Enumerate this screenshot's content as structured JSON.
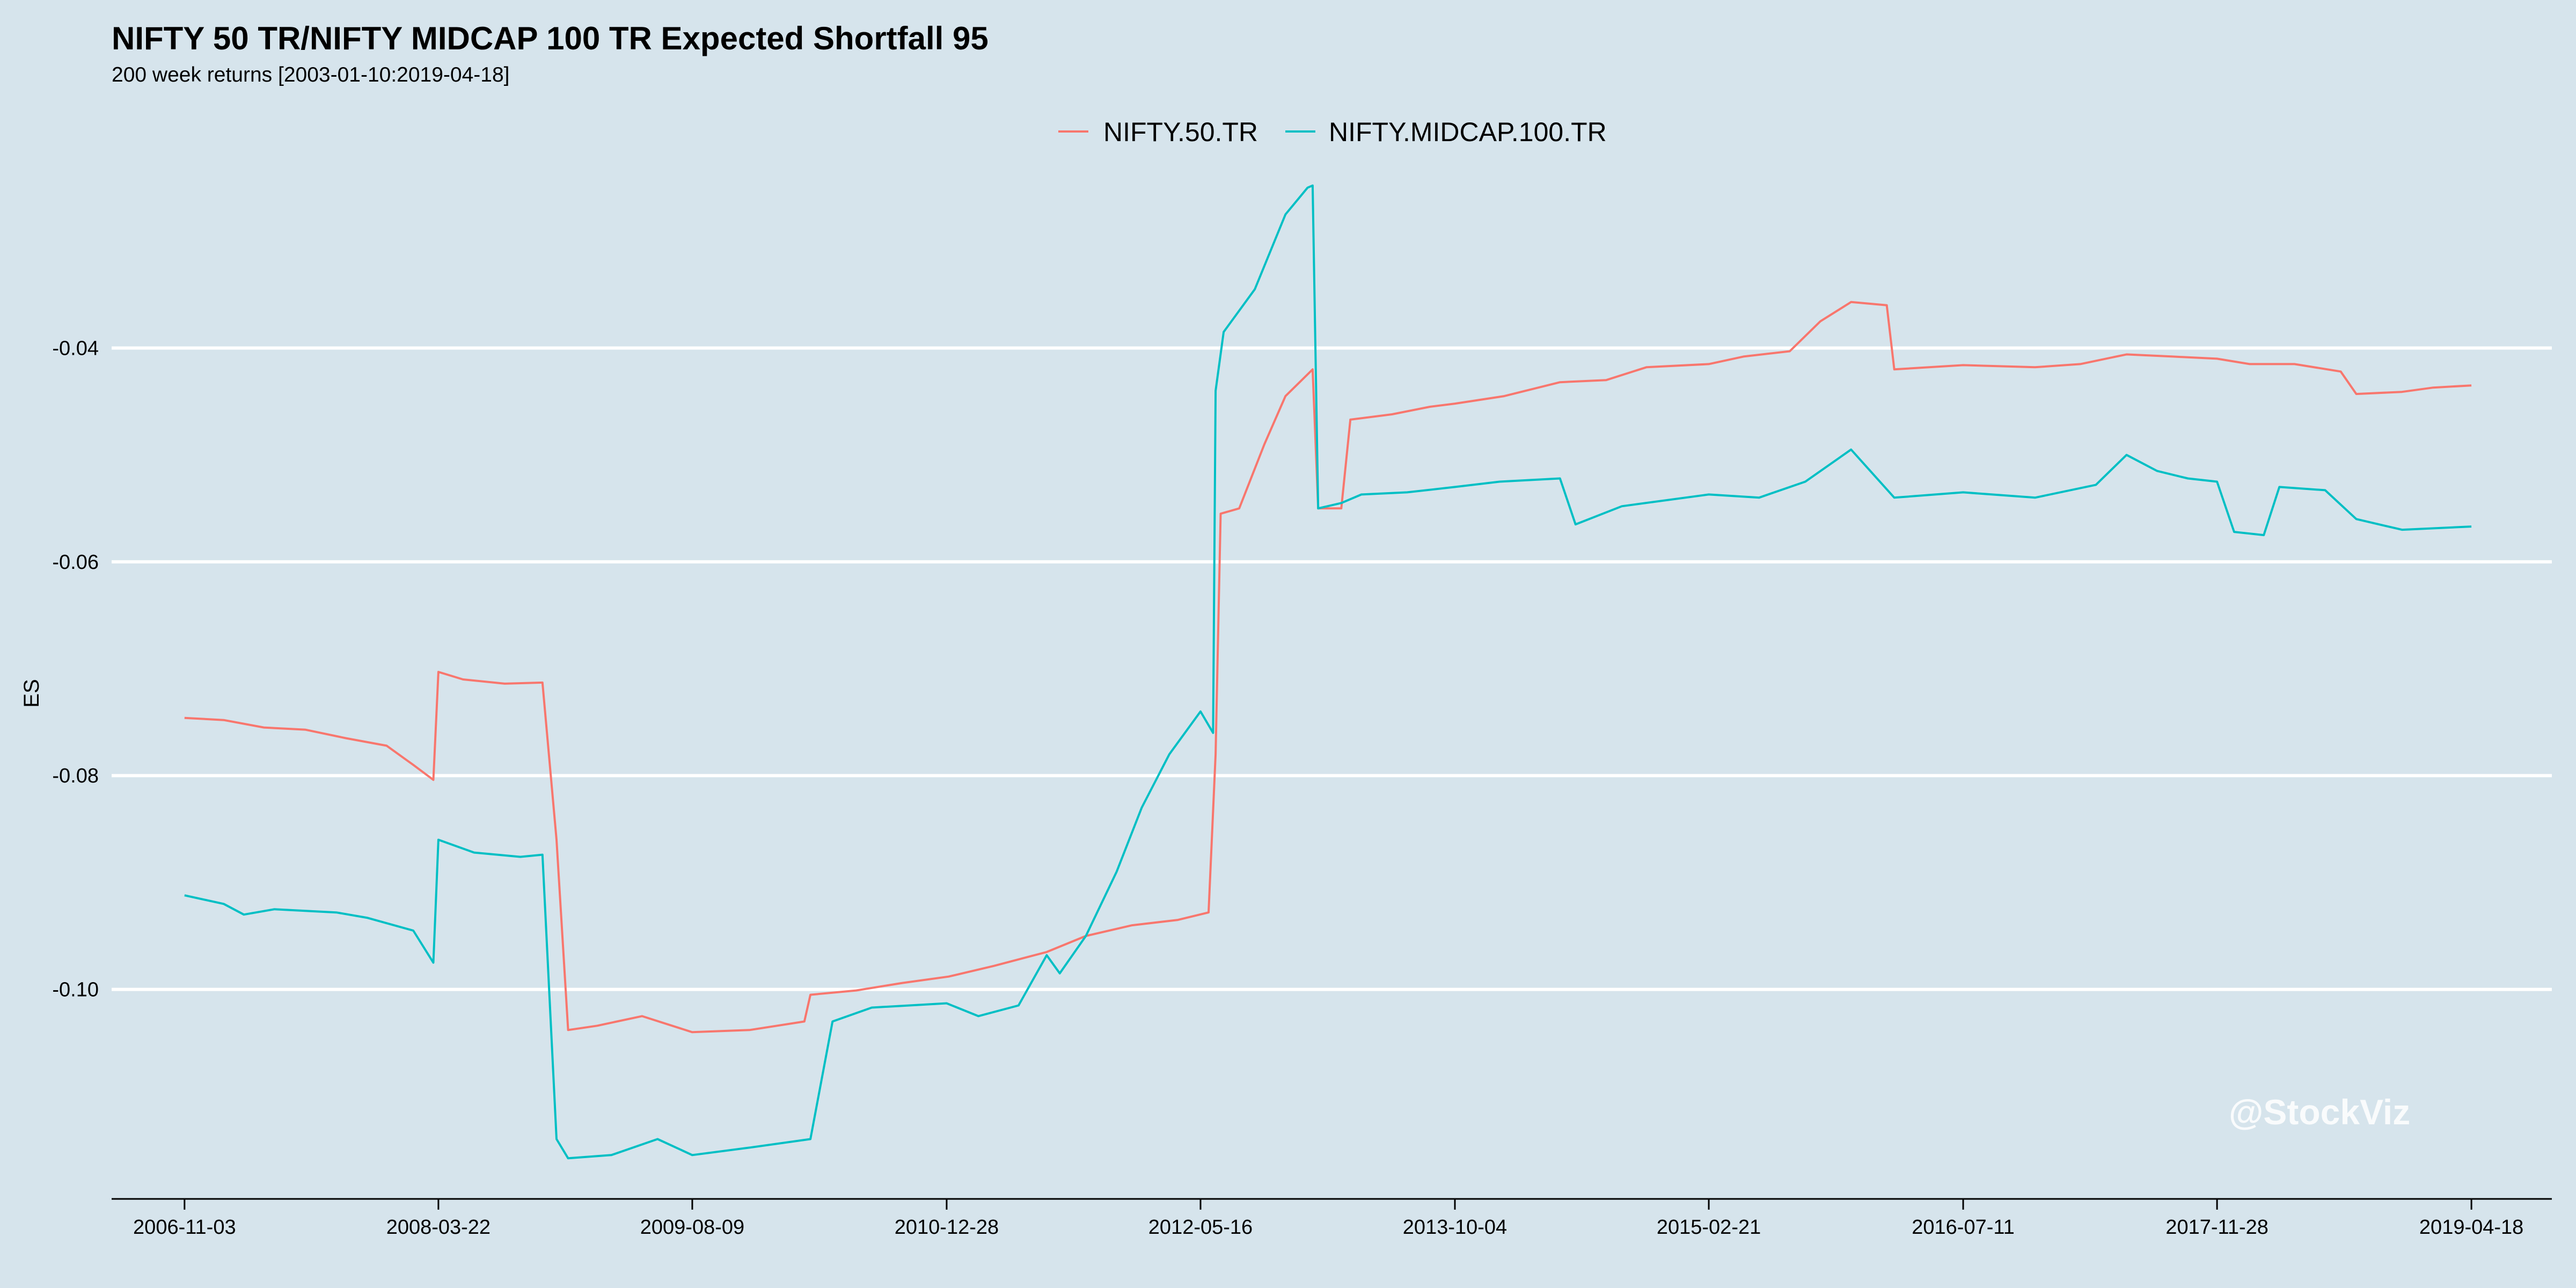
{
  "chart_data": {
    "type": "line",
    "title": "NIFTY 50 TR/NIFTY MIDCAP 100 TR Expected Shortfall 95",
    "subtitle": "200 week returns [2003-01-10:2019-04-18]",
    "xlabel": "",
    "ylabel": "ES",
    "watermark": "@StockViz",
    "x_ticks": [
      "2006-11-03",
      "2008-03-22",
      "2009-08-09",
      "2010-12-28",
      "2012-05-16",
      "2013-10-04",
      "2015-02-21",
      "2016-07-11",
      "2017-11-28",
      "2019-04-18"
    ],
    "y_ticks": [
      -0.1,
      -0.08,
      -0.06,
      -0.04
    ],
    "y_tick_labels": [
      "-0.10",
      "-0.08",
      "-0.06",
      "-0.04"
    ],
    "ylim": [
      -0.1196,
      -0.0215
    ],
    "xlim": [
      "2006-06-11",
      "2019-09-25"
    ],
    "grid": "horizontal-major",
    "legend_position": "top",
    "colors": {
      "nifty50": "#f8766d",
      "midcap": "#00bfc4",
      "background": "#d6e4ec",
      "grid": "#ffffff"
    },
    "series": [
      {
        "name": "NIFTY.50.TR",
        "color": "#f8766d",
        "points": [
          [
            "2006-11-03",
            -0.0746
          ],
          [
            "2007-01-20",
            -0.0748
          ],
          [
            "2007-04-10",
            -0.0755
          ],
          [
            "2007-07-01",
            -0.0757
          ],
          [
            "2007-09-20",
            -0.0765
          ],
          [
            "2007-12-10",
            -0.0772
          ],
          [
            "2008-02-01",
            -0.079
          ],
          [
            "2008-03-12",
            -0.0804
          ],
          [
            "2008-03-22",
            -0.0703
          ],
          [
            "2008-05-10",
            -0.071
          ],
          [
            "2008-08-01",
            -0.0714
          ],
          [
            "2008-10-15",
            -0.0713
          ],
          [
            "2008-11-12",
            -0.086
          ],
          [
            "2008-12-05",
            -0.1038
          ],
          [
            "2009-02-01",
            -0.1034
          ],
          [
            "2009-05-01",
            -0.1025
          ],
          [
            "2009-08-09",
            -0.104
          ],
          [
            "2009-12-01",
            -0.1038
          ],
          [
            "2010-03-20",
            -0.103
          ],
          [
            "2010-04-01",
            -0.1005
          ],
          [
            "2010-07-01",
            -0.1001
          ],
          [
            "2010-10-01",
            -0.0994
          ],
          [
            "2011-01-01",
            -0.0988
          ],
          [
            "2011-04-01",
            -0.0978
          ],
          [
            "2011-07-15",
            -0.0965
          ],
          [
            "2011-10-01",
            -0.095
          ],
          [
            "2012-01-01",
            -0.094
          ],
          [
            "2012-04-01",
            -0.0935
          ],
          [
            "2012-06-01",
            -0.0928
          ],
          [
            "2012-06-15",
            -0.078
          ],
          [
            "2012-06-25",
            -0.0555
          ],
          [
            "2012-08-01",
            -0.055
          ],
          [
            "2012-09-20",
            -0.049
          ],
          [
            "2012-11-01",
            -0.0445
          ],
          [
            "2012-12-25",
            -0.042
          ],
          [
            "2013-01-05",
            -0.055
          ],
          [
            "2013-02-20",
            -0.055
          ],
          [
            "2013-03-10",
            -0.0467
          ],
          [
            "2013-06-01",
            -0.0462
          ],
          [
            "2013-08-15",
            -0.0455
          ],
          [
            "2013-10-04",
            -0.0452
          ],
          [
            "2014-01-10",
            -0.0445
          ],
          [
            "2014-05-01",
            -0.0432
          ],
          [
            "2014-08-01",
            -0.043
          ],
          [
            "2014-10-20",
            -0.0418
          ],
          [
            "2015-02-21",
            -0.0415
          ],
          [
            "2015-05-01",
            -0.0408
          ],
          [
            "2015-08-01",
            -0.0403
          ],
          [
            "2015-10-01",
            -0.0375
          ],
          [
            "2015-12-01",
            -0.0357
          ],
          [
            "2016-02-10",
            -0.036
          ],
          [
            "2016-02-25",
            -0.042
          ],
          [
            "2016-07-11",
            -0.0416
          ],
          [
            "2016-12-01",
            -0.0418
          ],
          [
            "2017-03-01",
            -0.0415
          ],
          [
            "2017-06-01",
            -0.0406
          ],
          [
            "2017-09-01",
            -0.0408
          ],
          [
            "2017-11-28",
            -0.041
          ],
          [
            "2018-02-01",
            -0.0415
          ],
          [
            "2018-05-01",
            -0.0415
          ],
          [
            "2018-08-01",
            -0.0422
          ],
          [
            "2018-09-01",
            -0.0443
          ],
          [
            "2018-12-01",
            -0.0441
          ],
          [
            "2019-02-01",
            -0.0437
          ],
          [
            "2019-04-18",
            -0.0435
          ]
        ]
      },
      {
        "name": "NIFTY.MIDCAP.100.TR",
        "color": "#00bfc4",
        "points": [
          [
            "2006-11-03",
            -0.0912
          ],
          [
            "2007-01-20",
            -0.092
          ],
          [
            "2007-03-01",
            -0.093
          ],
          [
            "2007-05-01",
            -0.0925
          ],
          [
            "2007-09-01",
            -0.0928
          ],
          [
            "2007-11-01",
            -0.0933
          ],
          [
            "2008-02-01",
            -0.0945
          ],
          [
            "2008-03-12",
            -0.0975
          ],
          [
            "2008-03-22",
            -0.086
          ],
          [
            "2008-06-01",
            -0.0872
          ],
          [
            "2008-09-01",
            -0.0876
          ],
          [
            "2008-10-15",
            -0.0874
          ],
          [
            "2008-11-12",
            -0.114
          ],
          [
            "2008-12-05",
            -0.1158
          ],
          [
            "2009-03-01",
            -0.1155
          ],
          [
            "2009-06-01",
            -0.114
          ],
          [
            "2009-08-09",
            -0.1155
          ],
          [
            "2009-12-01",
            -0.1148
          ],
          [
            "2010-04-01",
            -0.114
          ],
          [
            "2010-05-15",
            -0.103
          ],
          [
            "2010-08-01",
            -0.1017
          ],
          [
            "2010-12-28",
            -0.1013
          ],
          [
            "2011-03-01",
            -0.1025
          ],
          [
            "2011-05-20",
            -0.1015
          ],
          [
            "2011-07-15",
            -0.0968
          ],
          [
            "2011-08-10",
            -0.0985
          ],
          [
            "2011-10-01",
            -0.095
          ],
          [
            "2011-12-01",
            -0.089
          ],
          [
            "2012-01-20",
            -0.083
          ],
          [
            "2012-03-15",
            -0.078
          ],
          [
            "2012-05-16",
            -0.074
          ],
          [
            "2012-06-10",
            -0.076
          ],
          [
            "2012-06-15",
            -0.044
          ],
          [
            "2012-07-01",
            -0.0385
          ],
          [
            "2012-09-01",
            -0.0345
          ],
          [
            "2012-11-01",
            -0.0275
          ],
          [
            "2012-12-15",
            -0.025
          ],
          [
            "2012-12-25",
            -0.0248
          ],
          [
            "2013-01-05",
            -0.055
          ],
          [
            "2013-02-20",
            -0.0545
          ],
          [
            "2013-04-01",
            -0.0537
          ],
          [
            "2013-07-01",
            -0.0535
          ],
          [
            "2013-10-04",
            -0.053
          ],
          [
            "2014-01-01",
            -0.0525
          ],
          [
            "2014-05-01",
            -0.0522
          ],
          [
            "2014-06-01",
            -0.0565
          ],
          [
            "2014-09-01",
            -0.0548
          ],
          [
            "2015-02-21",
            -0.0537
          ],
          [
            "2015-06-01",
            -0.054
          ],
          [
            "2015-09-01",
            -0.0525
          ],
          [
            "2015-12-01",
            -0.0495
          ],
          [
            "2016-02-25",
            -0.054
          ],
          [
            "2016-07-11",
            -0.0535
          ],
          [
            "2016-12-01",
            -0.054
          ],
          [
            "2017-04-01",
            -0.0528
          ],
          [
            "2017-06-01",
            -0.05
          ],
          [
            "2017-08-01",
            -0.0515
          ],
          [
            "2017-10-01",
            -0.0522
          ],
          [
            "2017-11-28",
            -0.0525
          ],
          [
            "2018-01-01",
            -0.0572
          ],
          [
            "2018-03-01",
            -0.0575
          ],
          [
            "2018-04-01",
            -0.053
          ],
          [
            "2018-07-01",
            -0.0533
          ],
          [
            "2018-09-01",
            -0.056
          ],
          [
            "2018-12-01",
            -0.057
          ],
          [
            "2019-04-18",
            -0.0567
          ]
        ]
      }
    ]
  }
}
